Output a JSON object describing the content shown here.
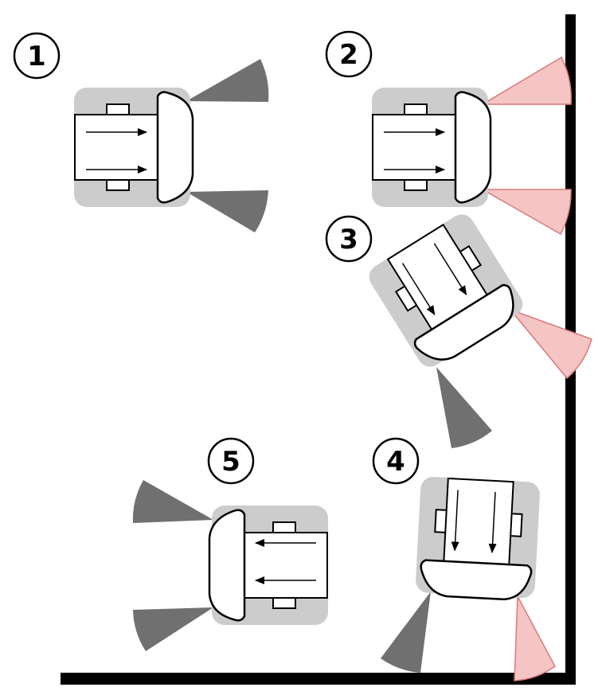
{
  "diagram": {
    "steps": [
      {
        "number": "1",
        "sensors": "none"
      },
      {
        "number": "2",
        "sensors": "both-front"
      },
      {
        "number": "3",
        "sensors": "front-right"
      },
      {
        "number": "4",
        "sensors": "front-right"
      },
      {
        "number": "5",
        "sensors": "none"
      }
    ],
    "colors": {
      "wall": "#000000",
      "robot_shadow": "#cccccc",
      "robot_body": "#ffffff",
      "sensor_idle": "#707070",
      "sensor_detect_fill": "#f5c4c4",
      "sensor_detect_stroke": "#d97a7a"
    },
    "icons": {
      "robot": "robot-top-view-icon",
      "arrow": "direction-arrow-icon",
      "sensor": "sensor-cone-icon"
    }
  }
}
